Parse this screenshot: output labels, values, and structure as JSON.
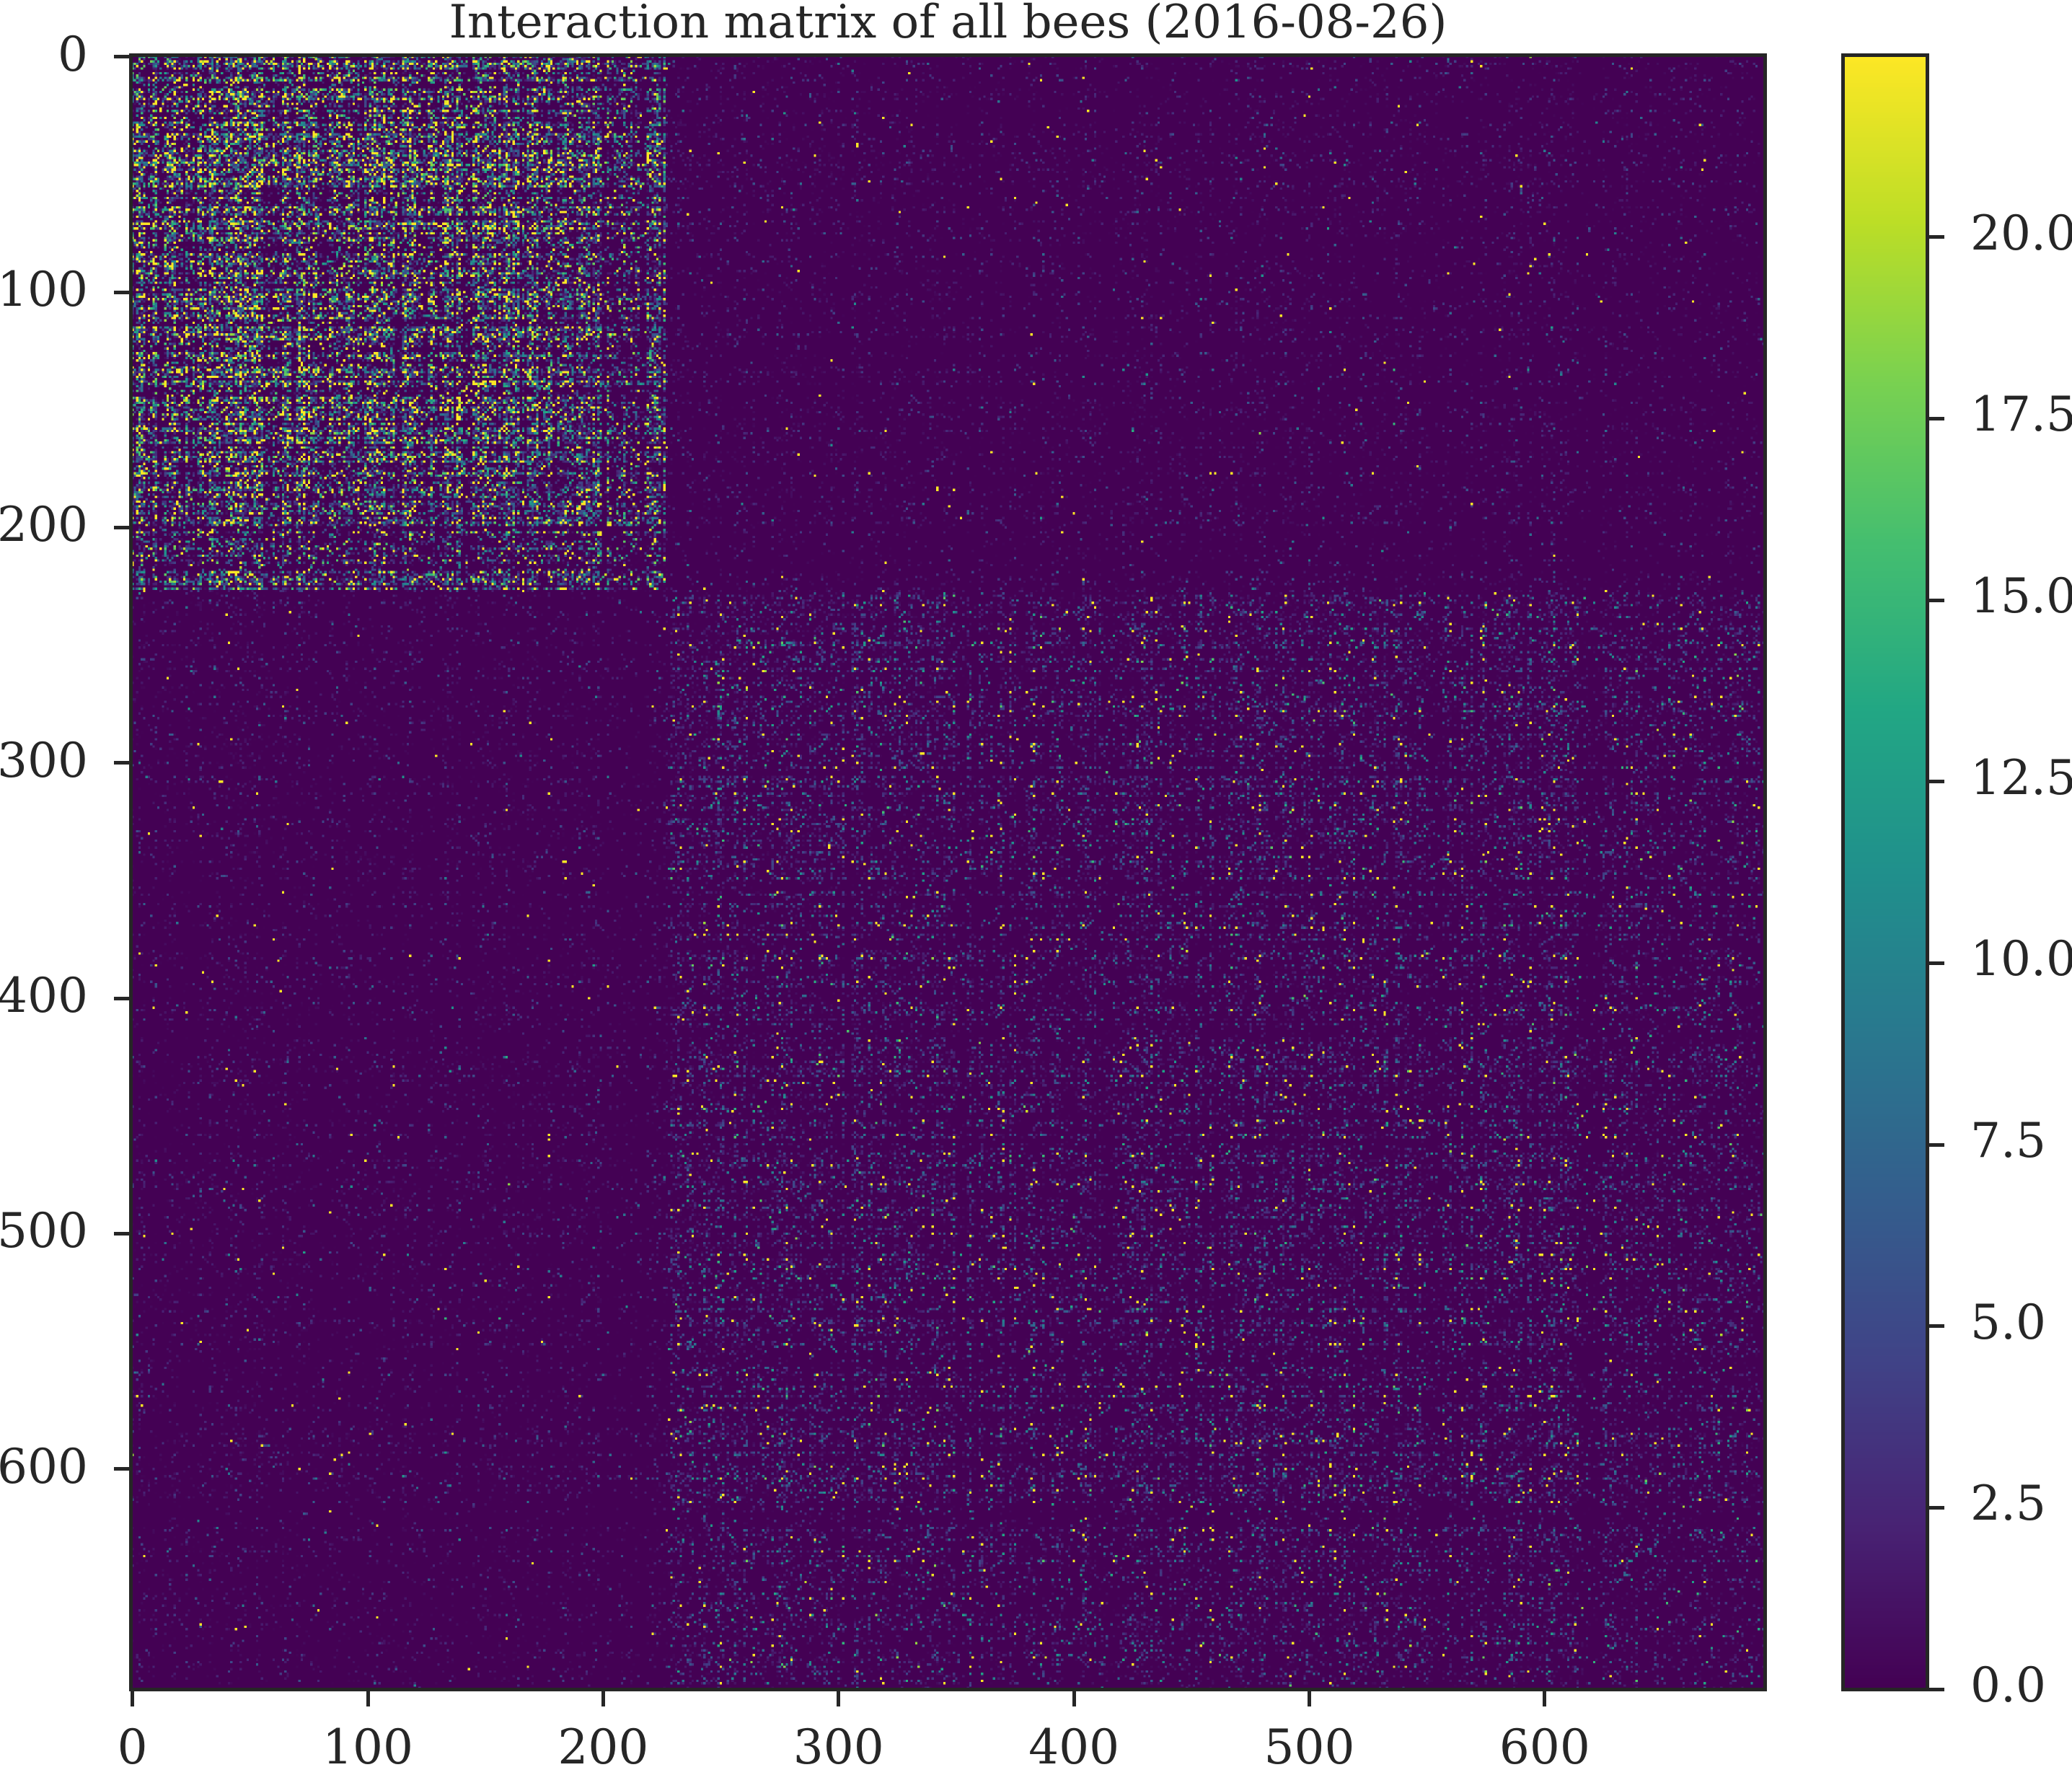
{
  "chart_data": {
    "type": "heatmap",
    "title": "Interaction matrix of all bees (2016-08-26)",
    "xlabel": "",
    "ylabel": "",
    "matrix_size": 694,
    "xlim": [
      0,
      694
    ],
    "ylim": [
      694,
      0
    ],
    "x_ticks": [
      0,
      100,
      200,
      300,
      400,
      500,
      600
    ],
    "x_tick_labels": [
      "0",
      "100",
      "200",
      "300",
      "400",
      "500",
      "600"
    ],
    "y_ticks": [
      0,
      100,
      200,
      300,
      400,
      500,
      600
    ],
    "y_tick_labels": [
      "0",
      "100",
      "200",
      "300",
      "400",
      "500",
      "600"
    ],
    "colormap": "viridis",
    "color_range": [
      0.0,
      22.5
    ],
    "colorbar_ticks": [
      0.0,
      2.5,
      5.0,
      7.5,
      10.0,
      12.5,
      15.0,
      17.5,
      20.0
    ],
    "colorbar_tick_labels": [
      "0.0",
      "2.5",
      "5.0",
      "7.5",
      "10.0",
      "12.5",
      "15.0",
      "17.5",
      "20.0"
    ],
    "symmetric": true,
    "clusters": [
      {
        "range": [
          0,
          178
        ],
        "intensity": "high"
      },
      {
        "range": [
          179,
          226
        ],
        "intensity": "high-striped"
      },
      {
        "range": [
          228,
          693
        ],
        "intensity": "moderate"
      }
    ],
    "between_cluster_intensity": "low",
    "grid": false,
    "legend": "colorbar-right"
  }
}
